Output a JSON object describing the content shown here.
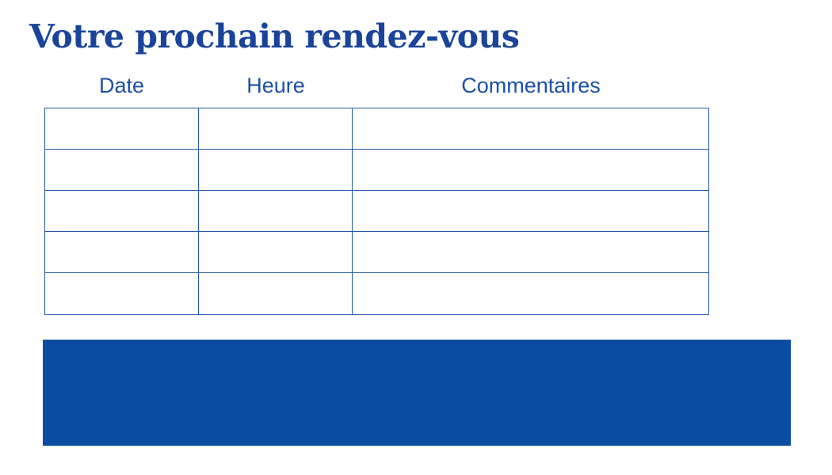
{
  "page": {
    "title": "Votre prochain rendez-vous"
  },
  "table": {
    "headers": [
      "Date",
      "Heure",
      "Commentaires"
    ],
    "rows": [
      [
        "",
        "",
        ""
      ],
      [
        "",
        "",
        ""
      ],
      [
        "",
        "",
        ""
      ],
      [
        "",
        "",
        ""
      ],
      [
        "",
        "",
        ""
      ]
    ]
  },
  "colors": {
    "title": "#1a4499",
    "header_text": "#1d50a5",
    "table_border": "#2558aa",
    "banner": "#0b4da2",
    "background": "#ffffff"
  }
}
